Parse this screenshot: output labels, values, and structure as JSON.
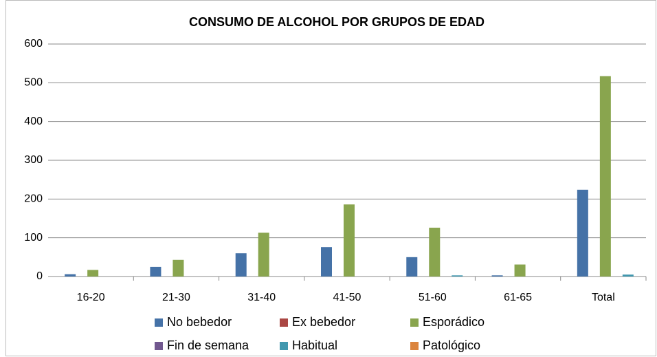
{
  "chart_data": {
    "type": "bar",
    "title": "CONSUMO DE ALCOHOL POR GRUPOS DE EDAD",
    "categories": [
      "16-20",
      "21-30",
      "31-40",
      "41-50",
      "51-60",
      "61-65",
      "Total"
    ],
    "series": [
      {
        "name": "No bebedor",
        "color": "#4572a7",
        "values": [
          6,
          25,
          60,
          76,
          50,
          3,
          224
        ]
      },
      {
        "name": "Ex bebedor",
        "color": "#aa4643",
        "values": [
          0,
          0,
          0,
          0,
          0,
          0,
          0
        ]
      },
      {
        "name": "Esporádico",
        "color": "#89a54e",
        "values": [
          17,
          43,
          113,
          186,
          126,
          31,
          517
        ]
      },
      {
        "name": "Fin de semana",
        "color": "#71588f",
        "values": [
          0,
          0,
          0,
          0,
          0,
          0,
          0
        ]
      },
      {
        "name": "Habitual",
        "color": "#4198af",
        "values": [
          0,
          0,
          0,
          0,
          3,
          0,
          5
        ]
      },
      {
        "name": "Patológico",
        "color": "#db843d",
        "values": [
          0,
          0,
          0,
          0,
          0,
          0,
          0
        ]
      }
    ],
    "ylim": [
      0,
      600
    ],
    "yticks": [
      0,
      100,
      200,
      300,
      400,
      500,
      600
    ],
    "grid": true,
    "legend": "bottom"
  }
}
